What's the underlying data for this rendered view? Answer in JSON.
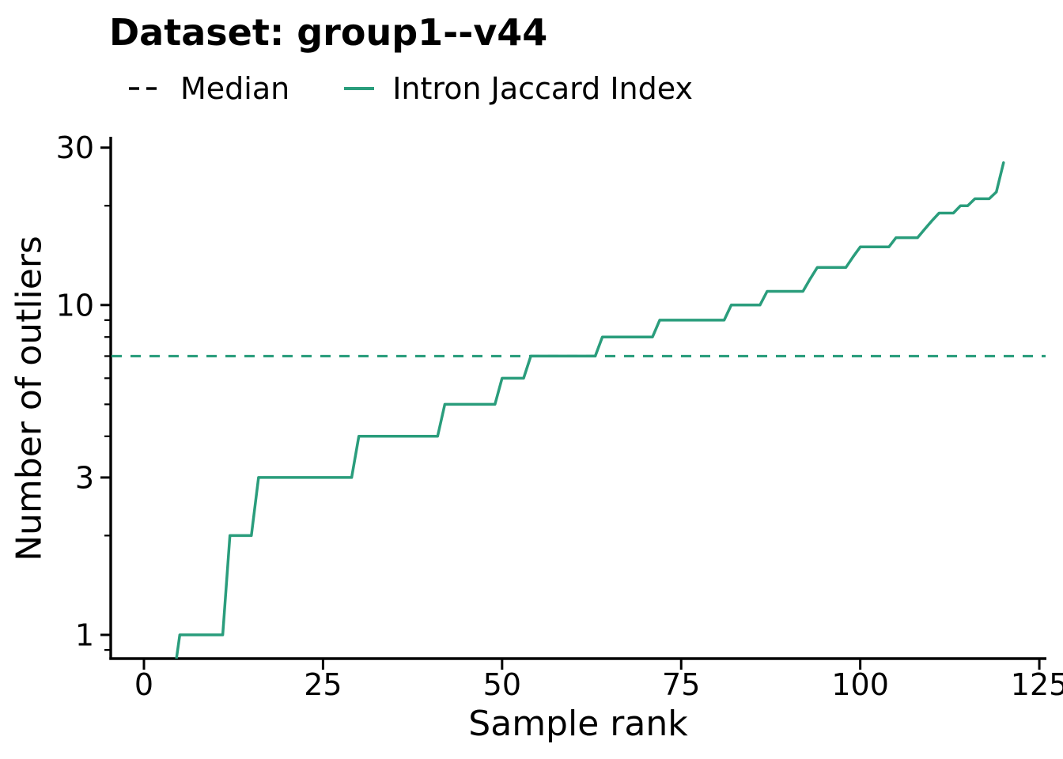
{
  "title": "Dataset: group1--v44",
  "legend": [
    {
      "label": "Median",
      "style": "dashed",
      "handle_color": "#000000"
    },
    {
      "label": "Intron Jaccard Index",
      "style": "solid",
      "handle_color": "#2a9d7c"
    }
  ],
  "axes": {
    "xlabel": "Sample rank",
    "ylabel": "Number of outliers",
    "x_ticks": [
      0,
      25,
      50,
      75,
      100,
      125
    ],
    "y_ticks_major": [
      1,
      3,
      10,
      30
    ],
    "y_ticks_minor": [
      0.9,
      2,
      4,
      5,
      6,
      7,
      8,
      9,
      20
    ],
    "y_scale": "log",
    "x_range_shown": [
      0,
      125
    ],
    "y_range_shown": [
      0.85,
      32
    ]
  },
  "chart_data": {
    "type": "line",
    "title": "Dataset: group1--v44",
    "xlabel": "Sample rank",
    "ylabel": "Number of outliers",
    "legend_position": "top",
    "grid": false,
    "median_value": 7,
    "series": [
      {
        "name": "Intron Jaccard Index",
        "style": "solid",
        "color": "#2a9d7c",
        "x_start_rank": 1,
        "values": [
          0,
          0,
          0,
          0,
          1,
          1,
          1,
          1,
          1,
          1,
          1,
          2,
          2,
          2,
          2,
          3,
          3,
          3,
          3,
          3,
          3,
          3,
          3,
          3,
          3,
          3,
          3,
          3,
          3,
          4,
          4,
          4,
          4,
          4,
          4,
          4,
          4,
          4,
          4,
          4,
          4,
          5,
          5,
          5,
          5,
          5,
          5,
          5,
          5,
          6,
          6,
          6,
          6,
          7,
          7,
          7,
          7,
          7,
          7,
          7,
          7,
          7,
          7,
          8,
          8,
          8,
          8,
          8,
          8,
          8,
          8,
          9,
          9,
          9,
          9,
          9,
          9,
          9,
          9,
          9,
          9,
          10,
          10,
          10,
          10,
          10,
          11,
          11,
          11,
          11,
          11,
          11,
          12,
          13,
          13,
          13,
          13,
          13,
          14,
          15,
          15,
          15,
          15,
          15,
          16,
          16,
          16,
          16,
          17,
          18,
          19,
          19,
          19,
          20,
          20,
          21,
          21,
          21,
          22,
          27
        ]
      },
      {
        "name": "Median",
        "style": "dashed",
        "color": "#2a9d7c",
        "constant_y": 7
      }
    ]
  },
  "colors": {
    "accent": "#2a9d7c",
    "text": "#000000",
    "background": "#ffffff"
  }
}
